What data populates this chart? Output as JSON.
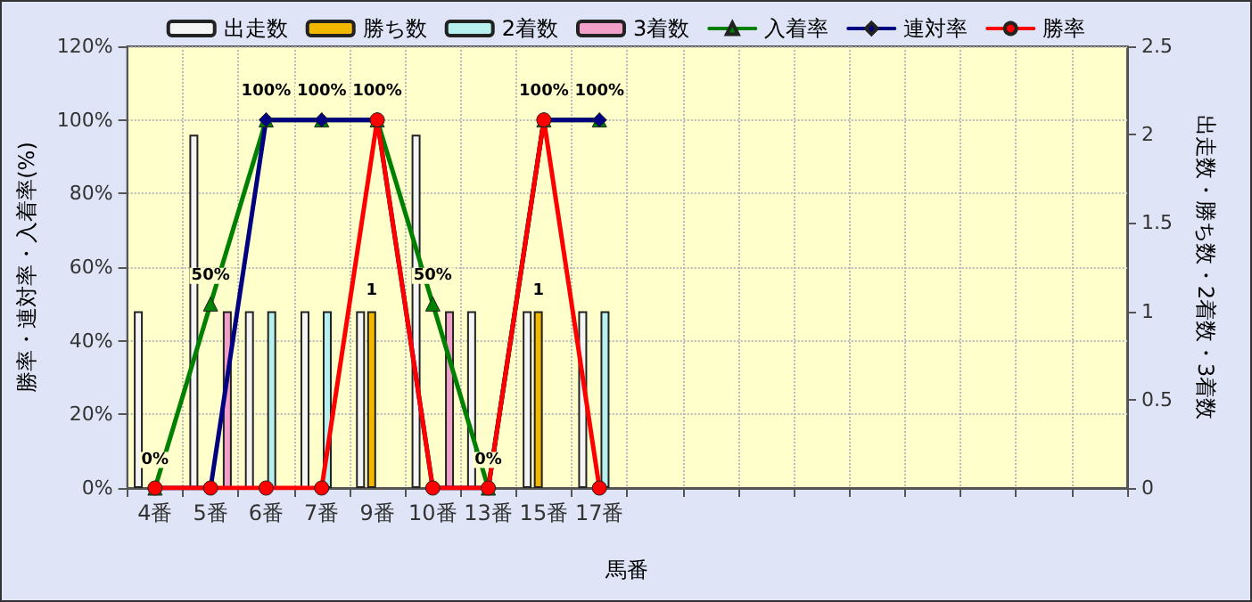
{
  "chart_data": {
    "type": "bar",
    "xlabel": "馬番",
    "ylabel": "勝率・連対率・入着率(%)",
    "y2label": "出走数・勝ち数・2着数・3着数",
    "categories": [
      "4番",
      "5番",
      "6番",
      "7番",
      "9番",
      "10番",
      "13番",
      "15番",
      "17番",
      null,
      null,
      null,
      null,
      null,
      null,
      null,
      null,
      null
    ],
    "series": [
      {
        "name": "出走数",
        "axis": "y2",
        "color": "#f4f4f4",
        "values": [
          1,
          2,
          1,
          1,
          1,
          2,
          1,
          1,
          1,
          null,
          null,
          null,
          null,
          null,
          null,
          null,
          null,
          null
        ]
      },
      {
        "name": "勝ち数",
        "axis": "y2",
        "color": "#f2b800",
        "values": [
          0,
          0,
          0,
          0,
          1,
          0,
          0,
          1,
          0,
          null,
          null,
          null,
          null,
          null,
          null,
          null,
          null,
          null
        ],
        "value_labels": [
          null,
          null,
          null,
          null,
          "1",
          null,
          null,
          "1",
          null,
          null,
          null,
          null,
          null,
          null,
          null,
          null,
          null,
          null
        ]
      },
      {
        "name": "2着数",
        "axis": "y2",
        "color": "#b8f0f0",
        "values": [
          0,
          0,
          1,
          1,
          0,
          0,
          0,
          0,
          1,
          null,
          null,
          null,
          null,
          null,
          null,
          null,
          null,
          null
        ]
      },
      {
        "name": "3着数",
        "axis": "y2",
        "color": "#f0a0c8",
        "values": [
          0,
          1,
          0,
          0,
          0,
          1,
          0,
          0,
          0,
          null,
          null,
          null,
          null,
          null,
          null,
          null,
          null,
          null
        ]
      },
      {
        "name": "入着率",
        "type": "line",
        "color": "#008000",
        "marker": "triangle",
        "values": [
          0,
          50,
          100,
          100,
          100,
          50,
          0,
          100,
          100,
          null,
          null,
          null,
          null,
          null,
          null,
          null,
          null,
          null
        ],
        "value_labels": [
          "0%",
          "50%",
          "100%",
          "100%",
          "100%",
          "50%",
          "0%",
          "100%",
          "100%",
          null,
          null,
          null,
          null,
          null,
          null,
          null,
          null,
          null
        ]
      },
      {
        "name": "連対率",
        "type": "line",
        "color": "#000080",
        "marker": "diamond",
        "values": [
          0,
          0,
          100,
          100,
          100,
          0,
          0,
          100,
          100,
          null,
          null,
          null,
          null,
          null,
          null,
          null,
          null,
          null
        ]
      },
      {
        "name": "勝率",
        "type": "line",
        "color": "#ff0000",
        "marker": "circle",
        "values": [
          0,
          0,
          0,
          0,
          100,
          0,
          0,
          100,
          0,
          null,
          null,
          null,
          null,
          null,
          null,
          null,
          null,
          null
        ]
      }
    ],
    "ylim": [
      0,
      120
    ],
    "yticks": [
      {
        "value": 0,
        "label": "0%"
      },
      {
        "value": 20,
        "label": "20%"
      },
      {
        "value": 40,
        "label": "40%"
      },
      {
        "value": 60,
        "label": "60%"
      },
      {
        "value": 80,
        "label": "80%"
      },
      {
        "value": 100,
        "label": "100%"
      },
      {
        "value": 120,
        "label": "120%"
      }
    ],
    "y2lim": [
      0,
      2.5
    ],
    "y2ticks": [
      0,
      0.5,
      1,
      1.5,
      2,
      2.5
    ],
    "grid": true,
    "legend": "top",
    "line_style": "solid"
  }
}
